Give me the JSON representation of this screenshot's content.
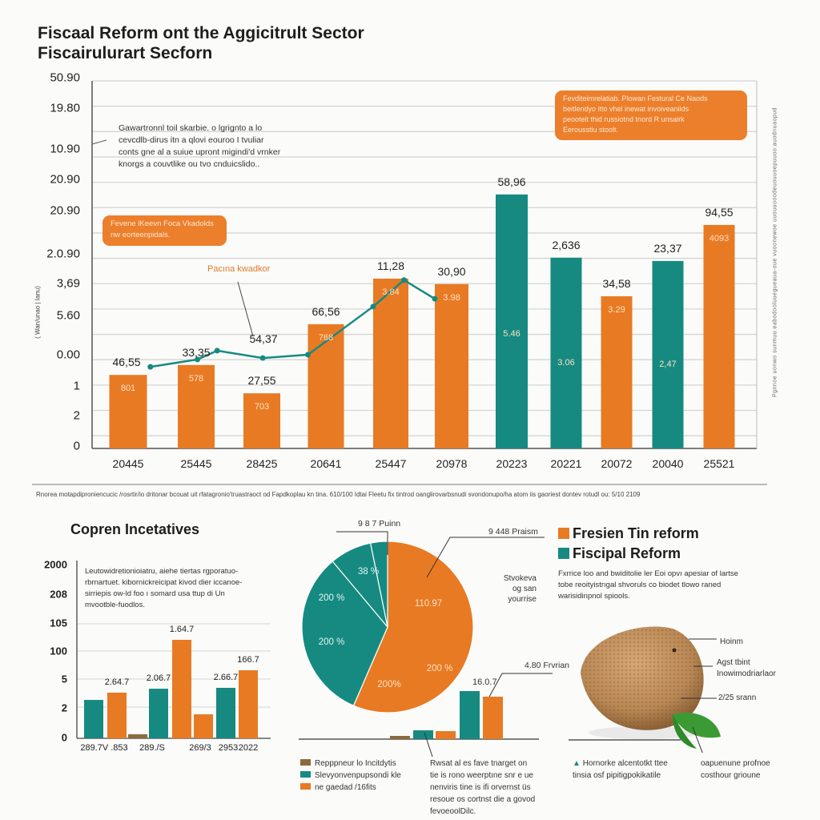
{
  "header": {
    "title": "Fiscaal Reform ont the Aggicitrult Sector",
    "subtitle": "Fiscairulurart Secforn"
  },
  "colors": {
    "orange": "#E87A24",
    "teal": "#168A80",
    "brown": "#8B6B3E",
    "grid": "#d4d4d4"
  },
  "main_chart": {
    "y_axis_label": "( Wan/unao | Ianu)",
    "annotation": [
      "Gawartronnl toil skarbie. o lgrignto a lo",
      "cevcdlb-dirus itn a qlovi eouroo I tvuliar",
      "conts gne al a suiue upront migindi'd vrnker",
      "knorgs a couvtlike ou tvo cnduicslido.."
    ],
    "orange_box_left": [
      "Fevene lKeevn  Foca  Vkadolds",
      "nw eorteenpidals."
    ],
    "orange_box_right": [
      "Fevditeimrelatiab. Plowan Festural Ce Naods",
      "beitlendyo  itto  vhel  inewat  invoiveaniids",
      "peooteit  thid  russiotnd  tnord  R  unsairk",
      "Eerousstiu stoolt."
    ],
    "line_label": "Pacına kwadkor",
    "footnote": "Rnorea motapdiproniencucic /rosrtir/io dritonar bcouat uit rfatagronio'truastraoct od Fapdkoplau kn tina. 610/100 Idtai Fleetu fix tintrod oanglirovarbsnudi svondonupo/ha atom iis gaoriest dontev rotudl ou: 5/10 2109",
    "side_text": "Pgnnoe uonwo sunmuu:eabodooluuegueaua-oue vuoonewoe uuouuooodeuouuoepuuoo:auodnuaopud",
    "chart_data": {
      "type": "bar",
      "categories": [
        "20445",
        "25445",
        "28425",
        "20641",
        "25447",
        "20978",
        "20223",
        "20221",
        "20072",
        "20040",
        "25521"
      ],
      "y_tick_labels": [
        "50.90",
        "19.80",
        "10.90",
        "20.90",
        "20.90",
        "2.0.90",
        "3,69",
        "5.60",
        "0.00",
        "1",
        "2",
        "0"
      ],
      "grid": true,
      "bars": [
        {
          "value": 20.0,
          "color": "orange",
          "top_label": "46,55",
          "inner_label": "801"
        },
        {
          "value": 22.7,
          "color": "orange",
          "top_label": "33,35",
          "inner_label": "578"
        },
        {
          "value": 15.0,
          "color": "orange",
          "top_label": "27,55",
          "inner_label": "703"
        },
        {
          "value": 33.8,
          "color": "orange",
          "top_label": "66,56",
          "inner_label": "768"
        },
        {
          "value": 46.2,
          "color": "orange",
          "top_label": "11,28",
          "inner_label": "3.84"
        },
        {
          "value": 44.7,
          "color": "orange",
          "top_label": "30,90",
          "inner_label": "3.98"
        },
        {
          "value": 69.1,
          "color": "teal",
          "top_label": "58,96",
          "inner_label": "5.46"
        },
        {
          "value": 51.9,
          "color": "teal",
          "top_label": "2,636",
          "inner_label": "3.06"
        },
        {
          "value": 41.4,
          "color": "orange",
          "top_label": "34,58",
          "inner_label": "3.29"
        },
        {
          "value": 51.0,
          "color": "teal",
          "top_label": "23,37",
          "inner_label": "2,47"
        },
        {
          "value": 60.8,
          "color": "orange",
          "top_label": "94,55",
          "inner_label": "4093"
        }
      ],
      "line_series": {
        "color": "teal",
        "points": [
          [
            0.6,
            22.2
          ],
          [
            1.3,
            24.2
          ],
          [
            1.6,
            26.6
          ],
          [
            2.3,
            24.6
          ],
          [
            3.0,
            25.5
          ],
          [
            4.0,
            38.6
          ],
          [
            4.5,
            45.8
          ],
          [
            5.0,
            40.7
          ]
        ],
        "extra_label": "54,37"
      }
    }
  },
  "incentives_chart": {
    "title": "Copren Incetatives",
    "note": [
      "Leutowidretionioiatru, aiehe tiertas rgporatuo-",
      "rbrnartuet. kibornickreicipat kivod  dier  iccanoe-",
      "sirriepis ow-ld  foo ı somard  usa  ttup di  Un",
      "mvootble-fuodlos."
    ],
    "chart_data": {
      "type": "bar",
      "y_tick_labels": [
        "2000",
        "208",
        "105",
        "100",
        "5",
        "2",
        "0"
      ],
      "x_tick_labels": [
        "289.7V .853",
        "289./S",
        "269/3",
        "2953",
        "2022"
      ],
      "bars": [
        {
          "value": 21.6,
          "color": "teal",
          "label": ""
        },
        {
          "value": 25.7,
          "color": "orange",
          "label": "2.64.7"
        },
        {
          "value": 2.3,
          "color": "brown",
          "label": ""
        },
        {
          "value": 27.9,
          "color": "teal",
          "label": "2.06.7"
        },
        {
          "value": 55.4,
          "color": "orange",
          "label": "1.64.7"
        },
        {
          "value": 13.5,
          "color": "orange",
          "label": ""
        },
        {
          "value": 28.4,
          "color": "teal",
          "label": "2.66.7"
        },
        {
          "value": 38.3,
          "color": "orange",
          "label": "166.7"
        }
      ]
    }
  },
  "pie_chart": {
    "chart_data": {
      "type": "pie",
      "slices": [
        {
          "percent": 56.5,
          "color": "orange"
        },
        {
          "percent": 32.4,
          "color": "teal"
        },
        {
          "percent": 7.9,
          "color": "teal"
        },
        {
          "percent": 3.2,
          "color": "teal"
        }
      ],
      "inner_labels": [
        "38 %",
        "200 %",
        "200 %",
        "110.97",
        "200 %",
        "200%"
      ],
      "callouts": [
        "9 8 7 Puinn",
        "9 448 Praism",
        "4.80 Frvrian"
      ]
    },
    "side_note": [
      "Stvokeva",
      "og san",
      "yourrise"
    ],
    "mini_bars": {
      "label": "16.0.7",
      "values": [
        {
          "value": 4,
          "color": "brown"
        },
        {
          "value": 11,
          "color": "teal"
        },
        {
          "value": 10,
          "color": "orange"
        },
        {
          "value": 60,
          "color": "teal"
        },
        {
          "value": 53,
          "color": "orange"
        }
      ]
    },
    "legend": [
      {
        "label": "Repppneur lo Incitdytis",
        "color": "brown"
      },
      {
        "label": "Slevyonvenpupsondi kle",
        "color": "teal"
      },
      {
        "label": "ne gaedad /16fits",
        "color": "orange"
      }
    ],
    "paragraph": [
      "Rwsat al es  fave tnarget  on",
      "tie is rono weerptıne snr e ue",
      "nenviris tine is ifi orvernst üs",
      "resoue os  cortnst  die a govod",
      "fevoeoolDilc."
    ]
  },
  "right_panel": {
    "legend": [
      {
        "label": "Fresien Tin reform",
        "color": "orange"
      },
      {
        "label": "Fiscipal Reform",
        "color": "teal"
      }
    ],
    "paragraph": [
      "Fxrrice loo and bwiditolie ler Eoi opvı apesiar of lartse",
      "tobe reoityistrıgal  shvoruls  co  biodet  tlowo  raned",
      "warisidinpnol spiools."
    ],
    "annotations": [
      "Hoinm",
      "Agst tbint",
      "Inowimodriarlaor",
      "2/25 srann"
    ],
    "footer_left": [
      "Hornorke alcentotkt ttee",
      "tinsia osf pipitigpokikatile"
    ],
    "footer_right": [
      "oapuenune profnoe",
      "costhour grioune"
    ]
  }
}
